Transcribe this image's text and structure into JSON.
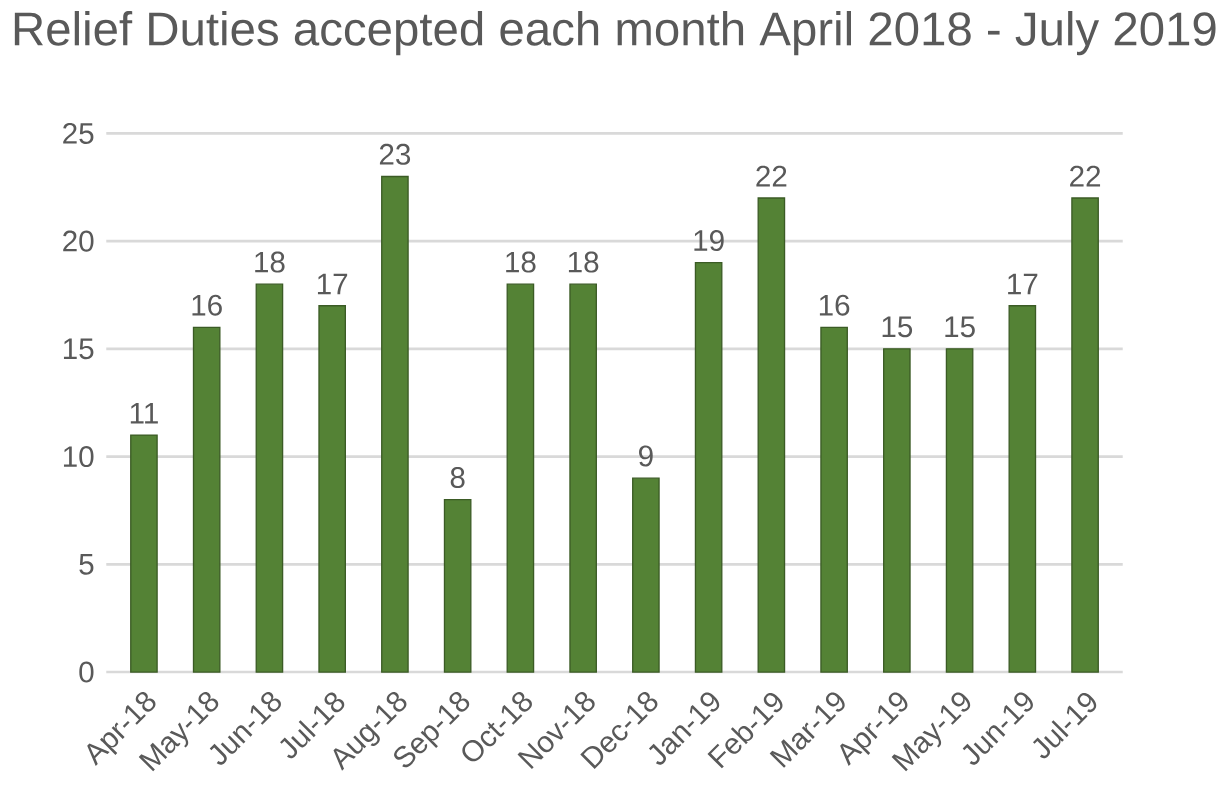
{
  "chart_data": {
    "type": "bar",
    "title": "Relief Duties accepted each month April 2018 - July 2019",
    "categories": [
      "Apr-18",
      "May-18",
      "Jun-18",
      "Jul-18",
      "Aug-18",
      "Sep-18",
      "Oct-18",
      "Nov-18",
      "Dec-18",
      "Jan-19",
      "Feb-19",
      "Mar-19",
      "Apr-19",
      "May-19",
      "Jun-19",
      "Jul-19"
    ],
    "values": [
      11,
      16,
      18,
      17,
      23,
      8,
      18,
      18,
      9,
      19,
      22,
      16,
      15,
      15,
      17,
      22
    ],
    "color": "#548235",
    "ylim": [
      0,
      25
    ],
    "yticks": [
      0,
      5,
      10,
      15,
      20,
      25
    ],
    "grid": "y",
    "data_labels": true
  }
}
